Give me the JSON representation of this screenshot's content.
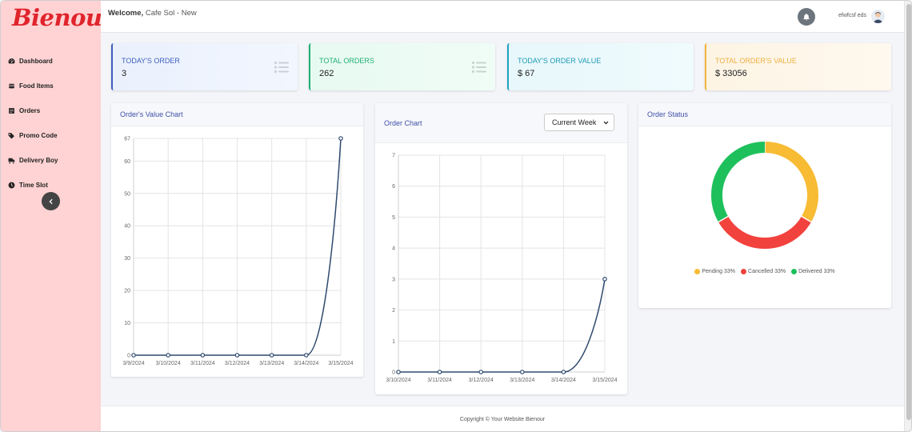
{
  "brand": {
    "logo_text": "Bienour",
    "logo_color": "#e0242c",
    "sidebar_bg": "#ffd3d3"
  },
  "sidebar": {
    "items": [
      {
        "label": "Dashboard",
        "icon": "dashboard-icon"
      },
      {
        "label": "Food Items",
        "icon": "food-icon"
      },
      {
        "label": "Orders",
        "icon": "orders-icon"
      },
      {
        "label": "Promo Code",
        "icon": "tag-icon"
      },
      {
        "label": "Delivery Boy",
        "icon": "truck-icon"
      },
      {
        "label": "Time Slot",
        "icon": "clock-icon"
      }
    ],
    "collapse_icon": "chevron-left-icon"
  },
  "header": {
    "welcome_label": "Welcome,",
    "store_name": "Cafe Sol - New",
    "username": "efwfcsf eds",
    "notification_icon": "bell-icon"
  },
  "stats": [
    {
      "label": "TODAY'S ORDER",
      "value": "3",
      "color": "#3e5fbf",
      "icon": "list-icon"
    },
    {
      "label": "TOTAL ORDERS",
      "value": "262",
      "color": "#1fae78",
      "icon": "list-icon"
    },
    {
      "label": "TODAY'S ORDER VALUE",
      "value": "$ 67",
      "color": "#1e9ab6"
    },
    {
      "label": "TOTAL ORDER'S VALUE",
      "value": "$ 33056",
      "color": "#eeb040"
    }
  ],
  "order_value_card": {
    "title": "Order's Value Chart"
  },
  "order_chart_card": {
    "title": "Order Chart",
    "period_select": "Current Week"
  },
  "order_status_card": {
    "title": "Order Status"
  },
  "chart_data": [
    {
      "type": "line",
      "title": "Order's Value Chart",
      "categories": [
        "3/9/2024",
        "3/10/2024",
        "3/11/2024",
        "3/12/2024",
        "3/13/2024",
        "3/14/2024",
        "3/15/2024"
      ],
      "values": [
        0,
        0,
        0,
        0,
        0,
        0,
        67
      ],
      "yticks": [
        0,
        10,
        20,
        30,
        40,
        50,
        60,
        67
      ],
      "ylim": [
        0,
        67
      ],
      "grid": true,
      "line_color": "#2f4a6e"
    },
    {
      "type": "line",
      "title": "Order Chart",
      "categories": [
        "3/10/2024",
        "3/11/2024",
        "3/12/2024",
        "3/13/2024",
        "3/14/2024",
        "3/15/2024"
      ],
      "values": [
        0,
        0,
        0,
        0,
        0,
        3
      ],
      "yticks": [
        0,
        1,
        2,
        3,
        4,
        5,
        6,
        7
      ],
      "ylim": [
        0,
        7
      ],
      "grid": true,
      "line_color": "#2f4a6e"
    },
    {
      "type": "pie",
      "title": "Order Status",
      "donut": true,
      "slices": [
        {
          "label": "Pending 33%",
          "value": 33,
          "color": "#f7bb34"
        },
        {
          "label": "Cancelled 33%",
          "value": 33,
          "color": "#f2423d"
        },
        {
          "label": "Delivered 33%",
          "value": 33,
          "color": "#1ec05c"
        }
      ],
      "legend": "bottom"
    }
  ],
  "footer": {
    "text": "Copyright © Your Website Bienour"
  }
}
